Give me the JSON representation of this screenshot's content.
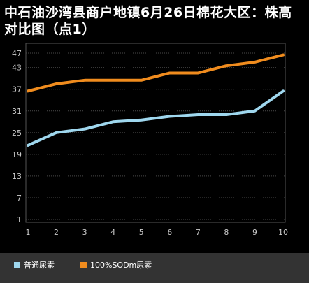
{
  "chart_data": {
    "type": "line",
    "title": "中石油沙湾县商户地镇6月26日棉花大区：株高对比图（点1）",
    "x": [
      1,
      2,
      3,
      4,
      5,
      6,
      7,
      8,
      9,
      10
    ],
    "y_ticks": [
      1,
      7,
      13,
      19,
      25,
      31,
      37,
      43,
      47
    ],
    "ylim": [
      1,
      47
    ],
    "xlabel": "",
    "ylabel": "",
    "grid": true,
    "legend_position": "bottom",
    "series": [
      {
        "name": "普通尿素",
        "color": "#9fd7ee",
        "values": [
          21.5,
          25,
          26,
          28,
          28.5,
          29.5,
          30,
          30,
          31,
          36.5
        ]
      },
      {
        "name": "100%SODm尿素",
        "color": "#f08c1e",
        "values": [
          36.5,
          38.5,
          39.5,
          39.5,
          39.5,
          41.5,
          41.5,
          43.5,
          44.5,
          46.5
        ]
      }
    ]
  }
}
